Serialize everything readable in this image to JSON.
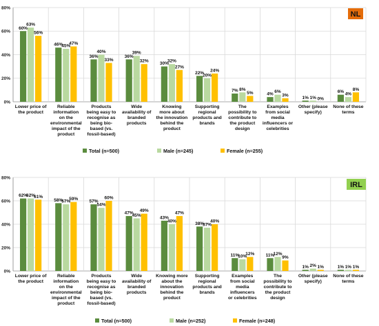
{
  "colors": {
    "total": "#5b8c3e",
    "male": "#b9d9a0",
    "female": "#ffc000",
    "grid": "#d9d9d9",
    "axis": "#8c8c8c",
    "badge_nl": "#e46c0a",
    "badge_irl": "#92d050"
  },
  "chart_data": [
    {
      "type": "bar",
      "badge": "NL",
      "ylim": [
        0,
        80
      ],
      "yticks": [
        "0%",
        "20%",
        "40%",
        "60%",
        "80%"
      ],
      "categories": [
        [
          "Lower price of",
          "the product"
        ],
        [
          "Reliable",
          "information",
          "on the",
          "environmental",
          "impact of the",
          "product"
        ],
        [
          "Products",
          "being easy to",
          "recognise as",
          "being bio-",
          "based (vs.",
          "fossil-based)"
        ],
        [
          "Wide",
          "availability of",
          "branded",
          "products"
        ],
        [
          "Knowing",
          "more about",
          "the innovation",
          "behind the",
          "product"
        ],
        [
          "Supporting",
          "regional",
          "products and",
          "brands"
        ],
        [
          "The",
          "possibility to",
          "contribute to",
          "the product",
          "design"
        ],
        [
          "Examples",
          "from social",
          "media",
          "influencers or",
          "celebrities"
        ],
        [
          "Other (please",
          "specify)"
        ],
        [
          "None of these",
          "terms"
        ]
      ],
      "series": [
        {
          "name": "Total (n=500)",
          "values": [
            60,
            46,
            36,
            36,
            30,
            22,
            7,
            4,
            1,
            6
          ]
        },
        {
          "name": "Male (n=245)",
          "values": [
            63,
            45,
            40,
            39,
            32,
            20,
            8,
            6,
            1,
            4
          ]
        },
        {
          "name": "Female (n=255)",
          "values": [
            56,
            47,
            33,
            32,
            27,
            24,
            5,
            3,
            0,
            8
          ]
        }
      ]
    },
    {
      "type": "bar",
      "badge": "IRL",
      "ylim": [
        0,
        80
      ],
      "yticks": [
        "0%",
        "20%",
        "40%",
        "60%",
        "80%"
      ],
      "categories": [
        [
          "Lower price of",
          "the product"
        ],
        [
          "Reliable",
          "information",
          "on the",
          "environmental",
          "impact of the",
          "product"
        ],
        [
          "Products",
          "being easy to",
          "recognise as",
          "being bio-",
          "based (vs.",
          "fossil-based)"
        ],
        [
          "Wide",
          "availability of",
          "branded",
          "products"
        ],
        [
          "Knowing more",
          "about the",
          "innovation",
          "behind the",
          "product"
        ],
        [
          "Supporting",
          "regional",
          "products and",
          "brands"
        ],
        [
          "Examples",
          "from social",
          "media",
          "influencers",
          "or celebrities"
        ],
        [
          "The",
          "possibility to",
          "contribute to",
          "the product",
          "design"
        ],
        [
          "Other (please",
          "specify)"
        ],
        [
          "None of these",
          "terms"
        ]
      ],
      "series": [
        {
          "name": "Total (n=500)",
          "values": [
            62,
            58,
            57,
            47,
            43,
            38,
            11,
            11,
            1,
            1
          ]
        },
        {
          "name": "Male (n=252)",
          "values": [
            62,
            57,
            54,
            45,
            40,
            37,
            10,
            12,
            2,
            1
          ]
        },
        {
          "name": "Female (n=248)",
          "values": [
            61,
            59,
            60,
            49,
            47,
            40,
            12,
            9,
            1,
            1
          ]
        }
      ]
    }
  ]
}
